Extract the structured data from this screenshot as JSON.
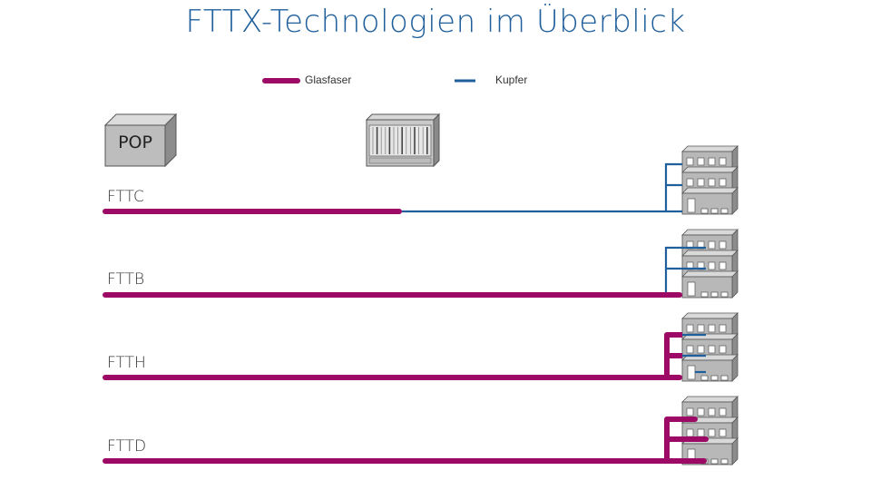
{
  "title": "FTTX-Technologien im Überblick",
  "legend": {
    "fiber_label": "Glasfaser",
    "copper_label": "Kupfer"
  },
  "colors": {
    "fiber": "#9c0a66",
    "copper": "#1f5f9c",
    "title": "#1f5f9c",
    "building": "#b8b8b8"
  },
  "pop_label": "POP",
  "rows": [
    {
      "label": "FTTC",
      "fiber_to": "street-cabinet"
    },
    {
      "label": "FTTB",
      "fiber_to": "building"
    },
    {
      "label": "FTTH",
      "fiber_to": "home"
    },
    {
      "label": "FTTD",
      "fiber_to": "desk"
    }
  ],
  "icons": [
    "pop-box-icon",
    "street-cabinet-icon",
    "building-icon"
  ]
}
